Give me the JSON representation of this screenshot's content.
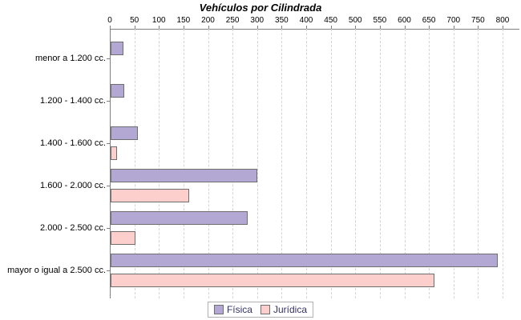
{
  "chart_data": {
    "type": "bar",
    "orientation": "horizontal",
    "title": "Vehículos por Cilindrada",
    "categories": [
      "menor a 1.200 cc.",
      "1.200 - 1.400 cc.",
      "1.400 - 1.600 cc.",
      "1.600 - 2.000 cc.",
      "2.000 - 2.500 cc.",
      "mayor o igual a 2.500 cc."
    ],
    "series": [
      {
        "name": "Física",
        "color": "#b3a8d4",
        "values": [
          23,
          25,
          53,
          296,
          276,
          786
        ]
      },
      {
        "name": "Jurídica",
        "color": "#fdcfcc",
        "values": [
          0,
          0,
          9,
          157,
          48,
          657
        ]
      }
    ],
    "xlabel": "",
    "ylabel": "",
    "xlim": [
      0,
      800
    ],
    "xticks": [
      0,
      50,
      100,
      150,
      200,
      250,
      300,
      350,
      400,
      450,
      500,
      550,
      600,
      650,
      700,
      750,
      800
    ],
    "grid": "vertical-dashed",
    "axis_position": "top",
    "legend_position": "bottom",
    "legend": [
      "Física",
      "Jurídica"
    ]
  }
}
